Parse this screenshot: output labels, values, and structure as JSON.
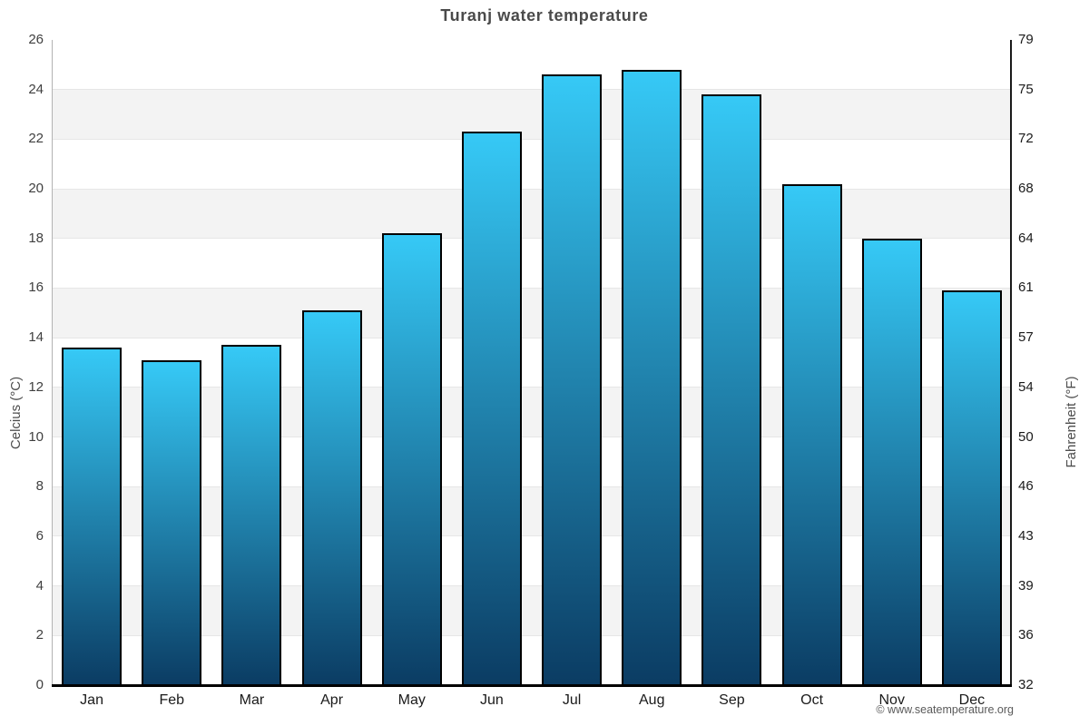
{
  "title": "Turanj water temperature",
  "footer": "© www.seatemperature.org",
  "axes": {
    "left_label": "Celcius (°C)",
    "right_label": "Fahrenheit (°F)",
    "left_ticks": [
      0,
      2,
      4,
      6,
      8,
      10,
      12,
      14,
      16,
      18,
      20,
      22,
      24,
      26
    ],
    "right_ticks": [
      32,
      36,
      39,
      43,
      46,
      50,
      54,
      57,
      61,
      64,
      68,
      72,
      75,
      79
    ]
  },
  "chart_data": {
    "type": "bar",
    "title": "Turanj water temperature",
    "categories": [
      "Jan",
      "Feb",
      "Mar",
      "Apr",
      "May",
      "Jun",
      "Jul",
      "Aug",
      "Sep",
      "Oct",
      "Nov",
      "Dec"
    ],
    "values": [
      13.6,
      13.1,
      13.7,
      15.1,
      18.2,
      22.3,
      24.6,
      24.8,
      23.8,
      20.2,
      18.0,
      15.9
    ],
    "ylabel_left": "Celcius (°C)",
    "ylabel_right": "Fahrenheit (°F)",
    "ylim_celsius": [
      0,
      26
    ],
    "ylim_fahrenheit": [
      32,
      79
    ],
    "grid": "alternating-horizontal-bands",
    "legend": "none",
    "band_color": "#f3f3f3",
    "bar_gradient_top": "#36c9f6",
    "bar_gradient_bottom": "#0b3c63",
    "bar_border_color": "#000000",
    "watermark": "© www.seatemperature.org"
  }
}
